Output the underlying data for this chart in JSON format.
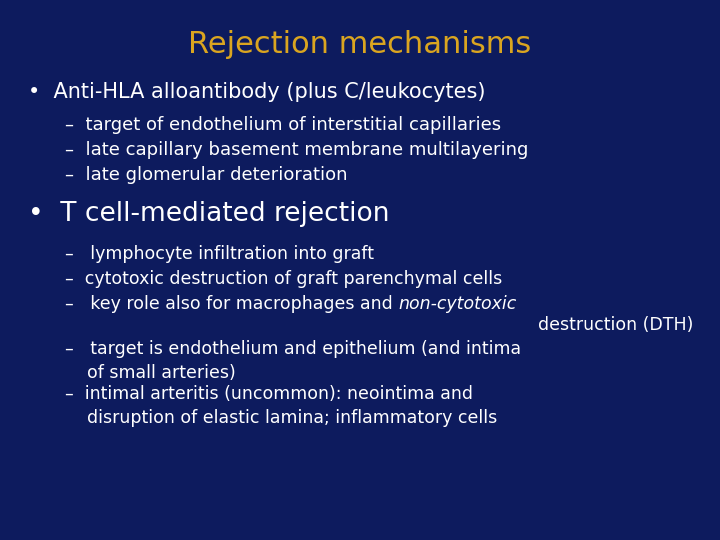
{
  "title": "Rejection mechanisms",
  "title_color": "#DAA520",
  "bg_color": "#0D1B5E",
  "text_color": "#FFFFFF",
  "title_fontsize": 22,
  "b1_text": "•  Anti-HLA alloantibody (plus C/leukocytes)",
  "b1_fs": 15,
  "s1_fs": 13,
  "s1": [
    "–  target of endothelium of interstitial capillaries",
    "–  late capillary basement membrane multilayering",
    "–  late glomerular deterioration"
  ],
  "b2_text": "•  T cell-mediated rejection",
  "b2_fs": 19,
  "s2_fs": 12.5,
  "s2": [
    {
      "parts": [
        {
          "t": "–   lymphocyte infiltration into graft",
          "i": false
        }
      ],
      "wrap2": false
    },
    {
      "parts": [
        {
          "t": "–  cytotoxic destruction of graft parenchymal cells",
          "i": false
        }
      ],
      "wrap2": false
    },
    {
      "parts": [
        {
          "t": "–   key role also for macrophages and ",
          "i": false
        },
        {
          "t": "non-cytotoxic",
          "i": true
        },
        {
          "t": "\n    destruction (DTH)",
          "i": false
        }
      ],
      "wrap2": true
    },
    {
      "parts": [
        {
          "t": "–   target is endothelium and epithelium (and intima\n    of small arteries)",
          "i": false
        }
      ],
      "wrap2": true
    },
    {
      "parts": [
        {
          "t": "–  intimal arteritis (uncommon): neointima and\n    disruption of elastic lamina; inflammatory cells",
          "i": false
        }
      ],
      "wrap2": true
    }
  ]
}
